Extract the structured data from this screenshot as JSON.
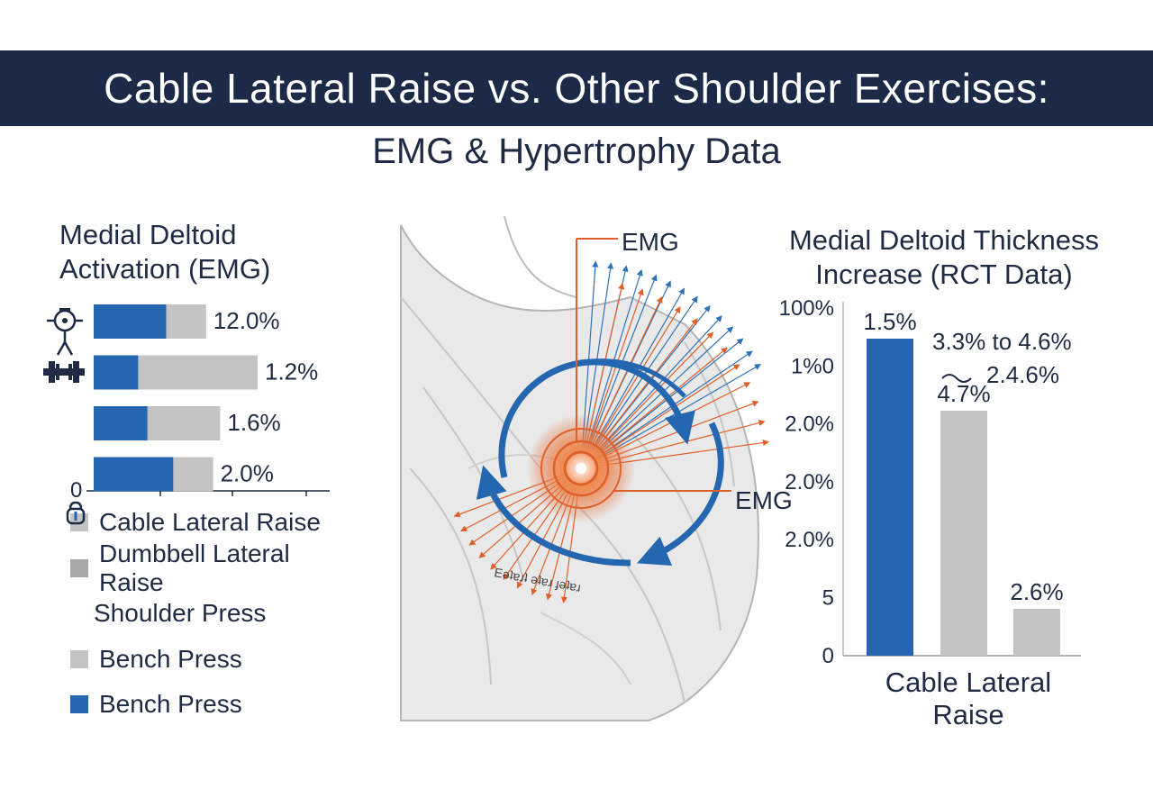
{
  "title": "Cable Lateral Raise vs. Other Shoulder Exercises:",
  "subtitle": "EMG & Hypertrophy Data",
  "illustration": {
    "label_top": "EMG",
    "label_right": "EMG",
    "mirrored_text": "Eǝʇɐɹʇ ǝʇɐɹ ɟǝʇɐɹ"
  },
  "legend": [
    {
      "label": "Cable Lateral Raise",
      "swatch": "gray"
    },
    {
      "label": "Dumbbell Lateral Raise",
      "swatch": "dgray"
    },
    {
      "label": "Shoulder Press",
      "swatch": "icon"
    },
    {
      "label": "Bench Press",
      "swatch": "gray"
    },
    {
      "label": "Bench Press",
      "swatch": "blue"
    }
  ],
  "colors": {
    "blue": "#2466b0",
    "gray": "#c4c4c4",
    "navy": "#1c2a48",
    "orange": "#e0602a"
  },
  "chart_data": [
    {
      "type": "bar",
      "orientation": "horizontal",
      "title": "Medial Deltoid Activation (EMG)",
      "axis_zero_label": "0",
      "rows": [
        {
          "blue": 0.31,
          "gray": 0.17,
          "label": "12.0%",
          "icon": "cable-machine-icon"
        },
        {
          "blue": 0.19,
          "gray": 0.51,
          "label": "1.2%",
          "icon": "dumbbell-icon"
        },
        {
          "blue": 0.23,
          "gray": 0.31,
          "label": "1.6%",
          "icon": ""
        },
        {
          "blue": 0.34,
          "gray": 0.17,
          "label": "2.0%",
          "icon": ""
        }
      ],
      "grid": false
    },
    {
      "type": "bar",
      "title": "Medial Deltoid Thickness Increase (RCT Data)",
      "y_tick_labels": [
        "100%",
        "1%0",
        "2.0%",
        "2.0%",
        "2.0%",
        "5",
        "0"
      ],
      "category_label": "Cable Lateral Raise",
      "bars": [
        {
          "value": 0.88,
          "color": "blue",
          "label": "1.5%"
        },
        {
          "value": 0.68,
          "color": "gray",
          "label": "4.7%"
        },
        {
          "value": 0.13,
          "color": "gray",
          "label": "2.6%"
        }
      ],
      "annotations": [
        "3.3% to 4.6%",
        "2.4.6%"
      ],
      "grid": false
    }
  ]
}
